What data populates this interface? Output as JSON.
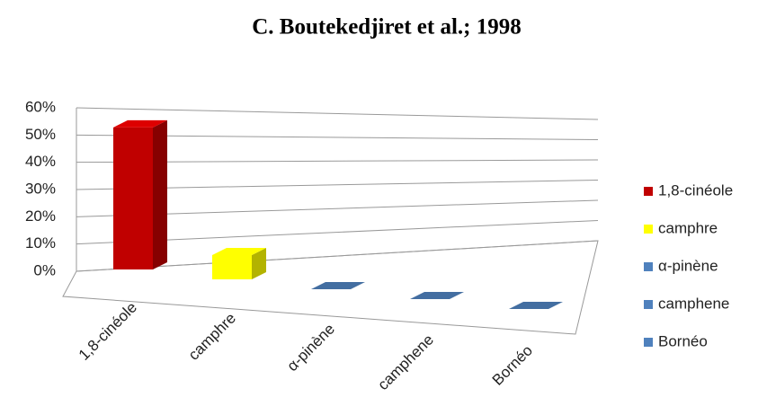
{
  "chart_data": {
    "type": "bar3d",
    "title": "C. Boutekedjiret et al.; 1998",
    "categories": [
      "1,8-cinéole",
      "camphre",
      "α-pinène",
      "camphene",
      "Bornéo"
    ],
    "values": [
      51,
      9,
      0,
      0,
      0
    ],
    "colors": [
      "#c00000",
      "#ffff00",
      "#4f81bd",
      "#4f81bd",
      "#4f81bd"
    ],
    "ylim": [
      0,
      60
    ],
    "yticks": [
      {
        "value": 0,
        "label": "0%"
      },
      {
        "value": 10,
        "label": "10%"
      },
      {
        "value": 20,
        "label": "20%"
      },
      {
        "value": 30,
        "label": "30%"
      },
      {
        "value": 40,
        "label": "40%"
      },
      {
        "value": 50,
        "label": "50%"
      },
      {
        "value": 60,
        "label": "60%"
      }
    ],
    "grid": true,
    "legend": "right"
  }
}
